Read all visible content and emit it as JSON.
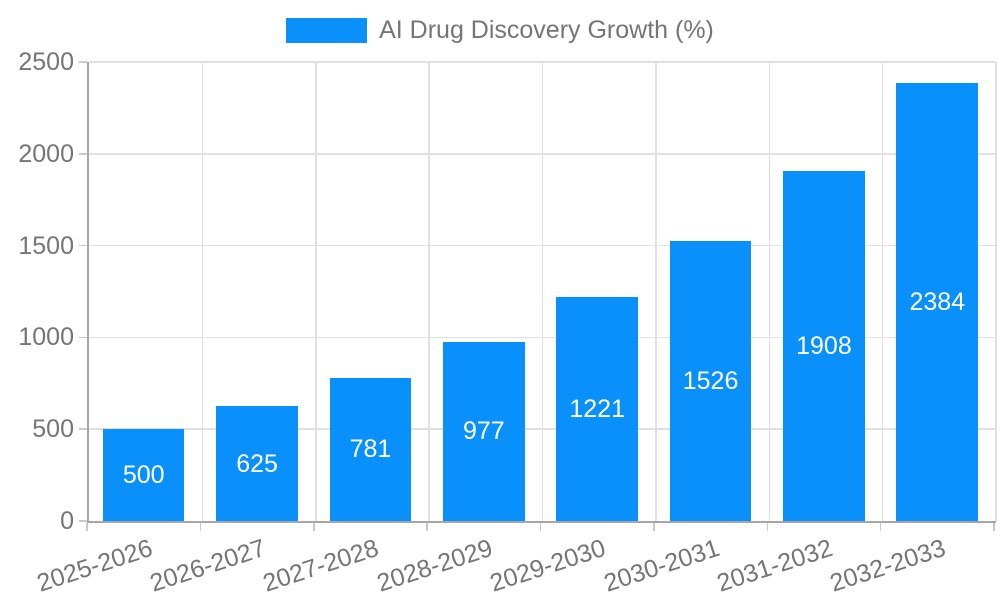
{
  "legend": {
    "label": "AI Drug Discovery Growth (%)"
  },
  "chart_data": {
    "type": "bar",
    "title": "AI Drug Discovery Growth (%)",
    "categories": [
      "2025-2026",
      "2026-2027",
      "2027-2028",
      "2028-2029",
      "2029-2030",
      "2030-2031",
      "2031-2032",
      "2032-2033"
    ],
    "values": [
      500,
      625,
      781,
      977,
      1221,
      1526,
      1908,
      2384
    ],
    "bar_value_labels": [
      "500",
      "625",
      "781",
      "977",
      "1221",
      "1526",
      "1908",
      "2384"
    ],
    "xlabel": "",
    "ylabel": "",
    "ylim": [
      0,
      2500
    ],
    "yticks": [
      0,
      500,
      1000,
      1500,
      2000,
      2500
    ],
    "grid": true,
    "legend_position": "top-center",
    "colors": {
      "bar": "#0a90fa",
      "bar_value_text": "#ffffff",
      "axis_text": "#757575",
      "gridline": "#e0e0e0",
      "axis_line": "#a6a6a6"
    }
  }
}
